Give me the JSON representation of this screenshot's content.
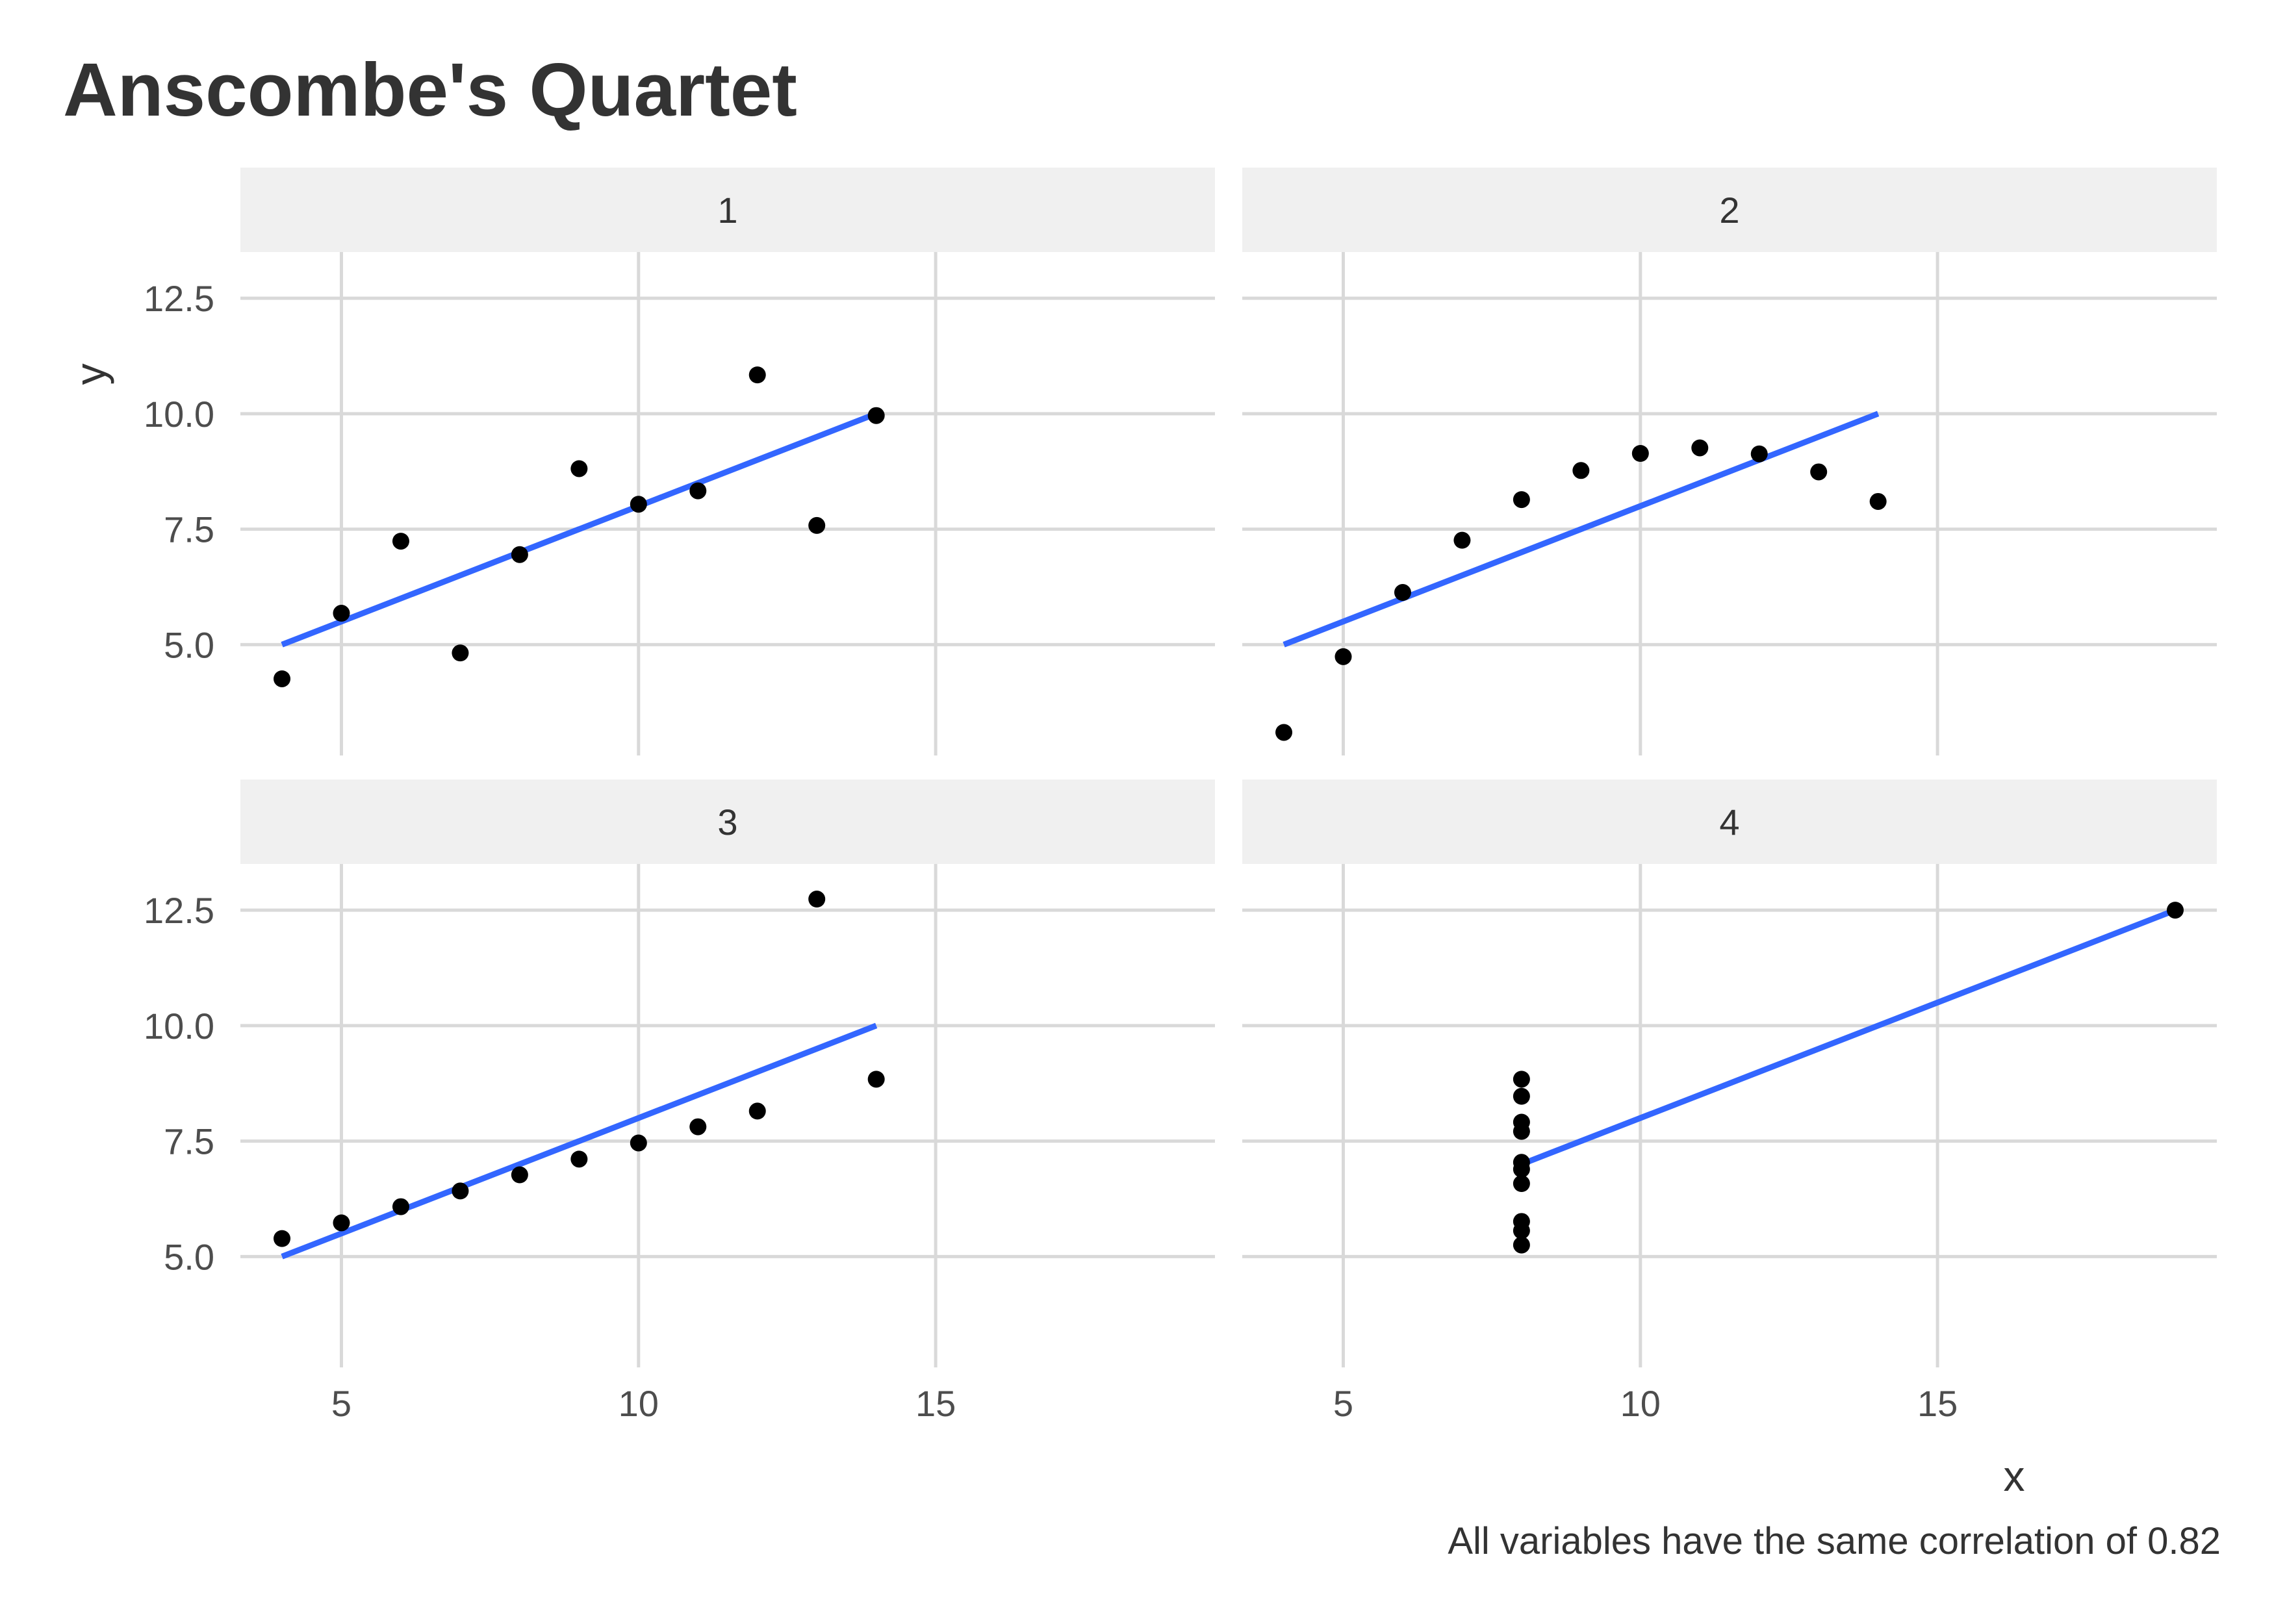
{
  "title": "Anscombe's Quartet",
  "caption": "All variables have the same correlation of 0.82",
  "chart_data": {
    "type": "scatter",
    "title": "Anscombe's Quartet",
    "xlabel": "x",
    "ylabel": "y",
    "xlim": [
      3.3,
      19.7
    ],
    "ylim": [
      2.6,
      13.5
    ],
    "x_ticks": [
      "5",
      "10",
      "15"
    ],
    "y_ticks": [
      "5.0",
      "7.5",
      "10.0",
      "12.5"
    ],
    "grid": true,
    "legend": "none",
    "colors": {
      "points": "#000000",
      "fit_line": "#3366ff",
      "strip": "#f0f0f0",
      "grid": "#d9d9d9"
    },
    "panels": [
      {
        "name": "1",
        "x": [
          10,
          8,
          13,
          9,
          11,
          14,
          6,
          4,
          12,
          7,
          5
        ],
        "y": [
          8.04,
          6.95,
          7.58,
          8.81,
          8.33,
          9.96,
          7.24,
          4.26,
          10.84,
          4.82,
          5.68
        ],
        "fit": {
          "x": [
            4,
            14
          ],
          "y": [
            5.0,
            10.0
          ]
        }
      },
      {
        "name": "2",
        "x": [
          10,
          8,
          13,
          9,
          11,
          14,
          6,
          4,
          12,
          7,
          5
        ],
        "y": [
          9.14,
          8.14,
          8.74,
          8.77,
          9.26,
          8.1,
          6.13,
          3.1,
          9.13,
          7.26,
          4.74
        ],
        "fit": {
          "x": [
            4,
            14
          ],
          "y": [
            5.0,
            10.0
          ]
        }
      },
      {
        "name": "3",
        "x": [
          10,
          8,
          13,
          9,
          11,
          14,
          6,
          4,
          12,
          7,
          5
        ],
        "y": [
          7.46,
          6.77,
          12.74,
          7.11,
          7.81,
          8.84,
          6.08,
          5.39,
          8.15,
          6.42,
          5.73
        ],
        "fit": {
          "x": [
            4,
            14
          ],
          "y": [
            5.0,
            10.0
          ]
        }
      },
      {
        "name": "4",
        "x": [
          8,
          8,
          8,
          8,
          8,
          8,
          8,
          19,
          8,
          8,
          8
        ],
        "y": [
          6.58,
          5.76,
          7.71,
          8.84,
          8.47,
          7.04,
          5.25,
          12.5,
          5.56,
          7.91,
          6.89
        ],
        "fit": {
          "x": [
            8,
            19
          ],
          "y": [
            7.0,
            12.5
          ]
        }
      }
    ]
  }
}
